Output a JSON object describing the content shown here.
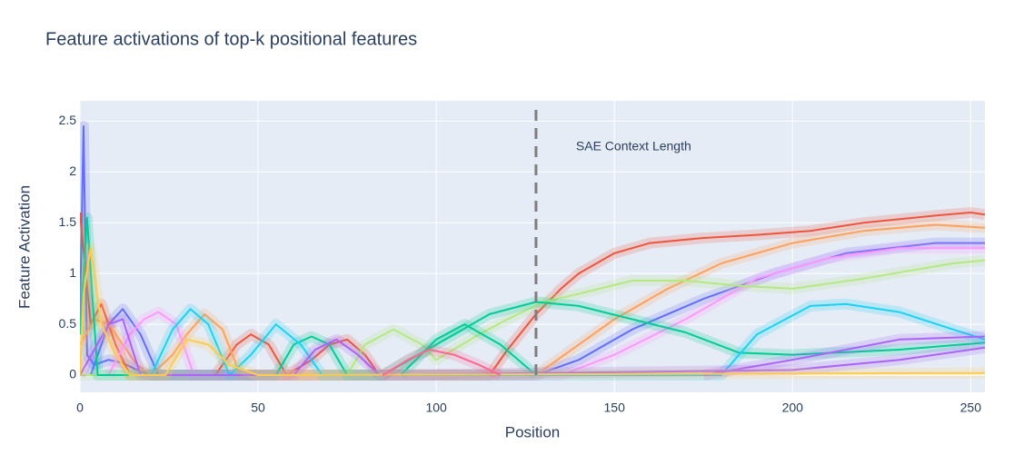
{
  "chart_data": {
    "type": "line",
    "title": "Feature activations of top-k positional features",
    "x_label": "Position",
    "y_label": "Feature Activation",
    "annotation": "SAE Context Length",
    "vline": 128,
    "xlim": [
      0,
      254
    ],
    "ylim": [
      -0.17,
      2.7
    ],
    "xticks": [
      0,
      50,
      100,
      150,
      200,
      250
    ],
    "yticks": [
      0,
      0.5,
      1,
      1.5,
      2,
      2.5
    ],
    "grid": true,
    "series": [
      {
        "color": "#636efa",
        "x": [
          0,
          1,
          2,
          4,
          8,
          12,
          16,
          20,
          128,
          140,
          155,
          175,
          195,
          215,
          240,
          254
        ],
        "values": [
          0.5,
          2.45,
          0.2,
          0.1,
          0.15,
          0.12,
          0.05,
          0,
          0,
          0.15,
          0.45,
          0.75,
          1.0,
          1.2,
          1.3,
          1.3
        ]
      },
      {
        "color": "#636efa",
        "x": [
          3,
          8,
          12,
          17,
          22
        ],
        "values": [
          0,
          0.5,
          0.65,
          0.4,
          0
        ]
      },
      {
        "color": "#EF553B",
        "x": [
          0,
          3,
          6,
          10,
          14,
          20,
          115,
          120,
          128,
          135,
          140,
          150,
          160,
          175,
          190,
          205,
          220,
          240,
          250,
          254
        ],
        "values": [
          1.6,
          0.5,
          0.7,
          0.3,
          0,
          0,
          0,
          0.25,
          0.6,
          0.85,
          1.0,
          1.2,
          1.3,
          1.35,
          1.38,
          1.42,
          1.5,
          1.57,
          1.6,
          1.58
        ]
      },
      {
        "color": "#EF553B",
        "x": [
          38,
          44,
          48,
          53,
          58,
          65,
          70,
          75,
          80,
          84
        ],
        "values": [
          0,
          0.3,
          0.4,
          0.3,
          0,
          0.15,
          0.3,
          0.35,
          0.2,
          0
        ]
      },
      {
        "color": "#FFA15A",
        "x": [
          0,
          4,
          8,
          12,
          16,
          20,
          26,
          30,
          35,
          40,
          45,
          128,
          140,
          150,
          165,
          180,
          200,
          220,
          240,
          254
        ],
        "values": [
          0.3,
          0.55,
          0.5,
          0.3,
          0.1,
          0,
          0.2,
          0.4,
          0.6,
          0.45,
          0,
          0,
          0.3,
          0.55,
          0.85,
          1.1,
          1.3,
          1.42,
          1.48,
          1.45
        ]
      },
      {
        "color": "#FF97FF",
        "x": [
          8,
          14,
          18,
          22,
          27,
          32,
          135,
          150,
          170,
          190,
          210,
          230,
          254
        ],
        "values": [
          0,
          0.4,
          0.55,
          0.62,
          0.5,
          0,
          0,
          0.2,
          0.55,
          0.95,
          1.15,
          1.25,
          1.25
        ]
      },
      {
        "color": "#B6E880",
        "x": [
          0,
          75,
          80,
          88,
          96,
          100,
          112,
          120,
          130,
          140,
          155,
          170,
          185,
          200,
          220,
          245,
          254
        ],
        "values": [
          0,
          0,
          0.3,
          0.45,
          0.3,
          0.15,
          0.4,
          0.55,
          0.72,
          0.8,
          0.93,
          0.93,
          0.88,
          0.85,
          0.95,
          1.1,
          1.13
        ]
      },
      {
        "color": "#00cc96",
        "x": [
          0,
          2,
          5,
          55,
          60,
          65,
          70,
          75,
          85,
          100,
          115,
          128,
          140,
          155,
          170,
          185,
          200,
          230,
          254
        ],
        "values": [
          0.4,
          1.55,
          0,
          0,
          0.3,
          0.38,
          0.3,
          0,
          0,
          0.3,
          0.6,
          0.72,
          0.68,
          0.55,
          0.42,
          0.22,
          0.2,
          0.25,
          0.32
        ]
      },
      {
        "color": "#00cc96",
        "x": [
          90,
          100,
          108,
          118,
          128
        ],
        "values": [
          0,
          0.35,
          0.5,
          0.3,
          0
        ]
      },
      {
        "color": "#19d3f3",
        "x": [
          20,
          26,
          31,
          36,
          42,
          48,
          55,
          62,
          68,
          180,
          190,
          205,
          215,
          230,
          245,
          254
        ],
        "values": [
          0,
          0.45,
          0.65,
          0.5,
          0,
          0.2,
          0.5,
          0.3,
          0,
          0,
          0.4,
          0.68,
          0.7,
          0.62,
          0.45,
          0.35
        ]
      },
      {
        "color": "#ab63fa",
        "x": [
          0,
          8,
          12,
          17,
          60,
          66,
          72,
          78,
          84,
          200,
          230,
          254
        ],
        "values": [
          0,
          0.5,
          0.55,
          0,
          0,
          0.25,
          0.35,
          0.2,
          0,
          0.05,
          0.15,
          0.27
        ]
      },
      {
        "color": "#ab63fa",
        "x": [
          175,
          200,
          230,
          254
        ],
        "values": [
          0,
          0.15,
          0.35,
          0.38
        ]
      },
      {
        "color": "#FECB52",
        "x": [
          0,
          1,
          3,
          6,
          10,
          14,
          24,
          30,
          36,
          42,
          50,
          254
        ],
        "values": [
          0,
          0.8,
          1.25,
          0.5,
          0.2,
          0,
          0,
          0.35,
          0.3,
          0.1,
          0,
          0.02
        ]
      },
      {
        "color": "#FF6692",
        "x": [
          85,
          92,
          98,
          105,
          112,
          118
        ],
        "values": [
          0,
          0.15,
          0.25,
          0.2,
          0.1,
          0
        ]
      }
    ]
  }
}
